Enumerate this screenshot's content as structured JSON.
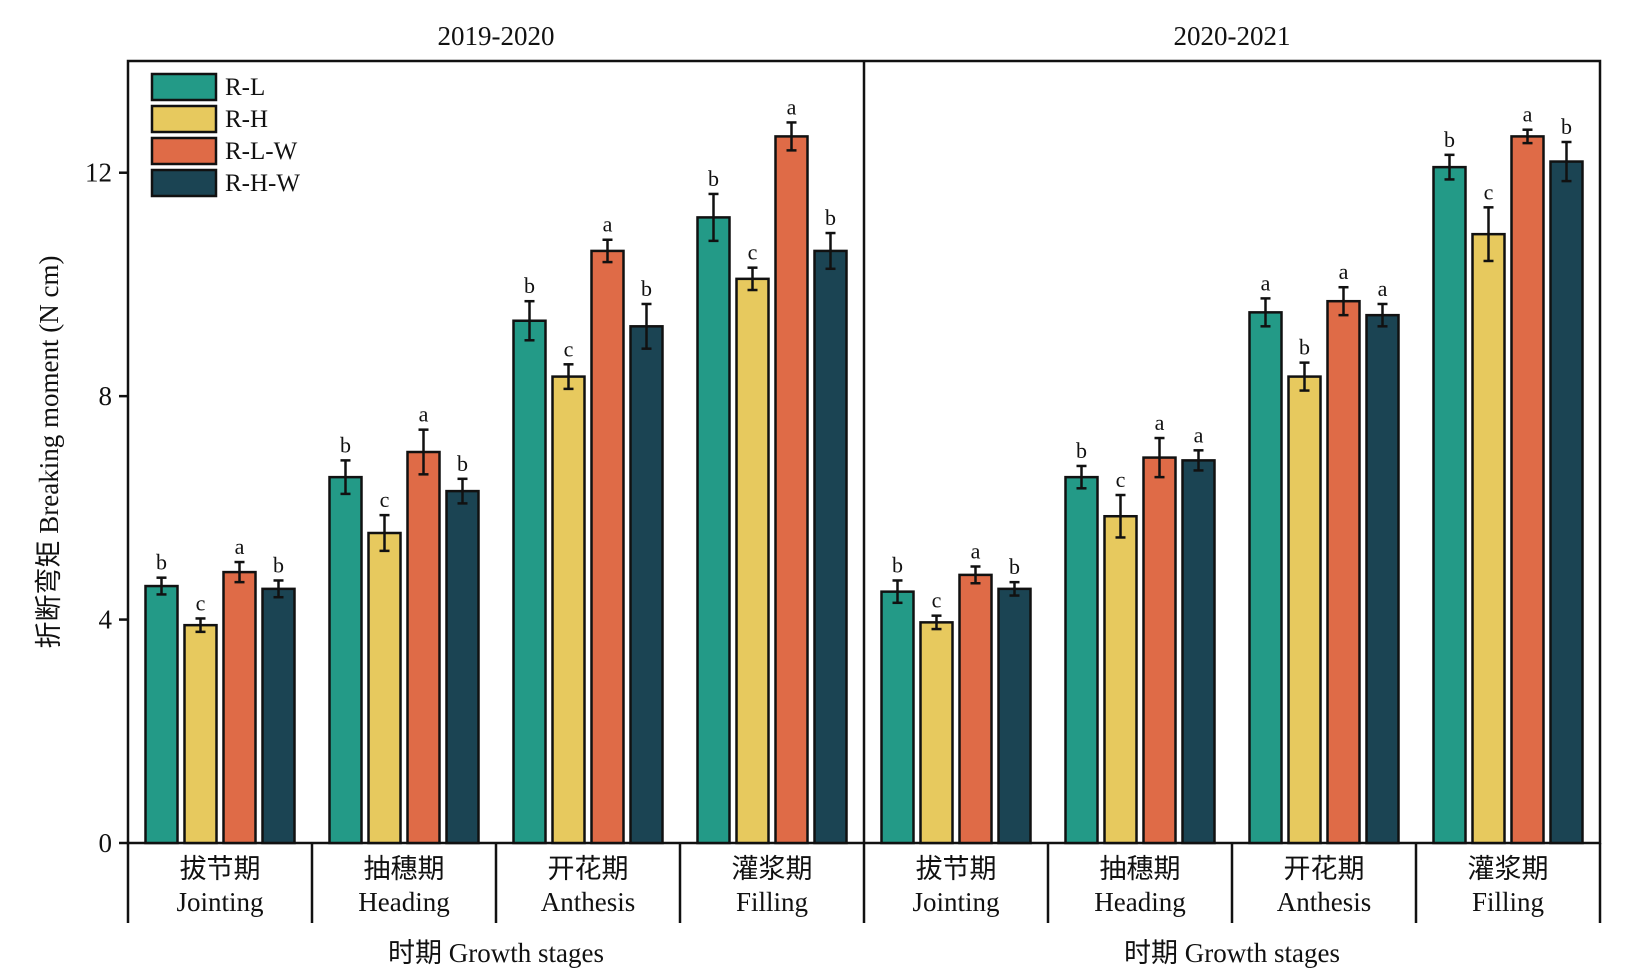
{
  "chart_data": {
    "type": "bar",
    "ylabel": "折断弯矩 Breaking moment (N cm)",
    "ylim": [
      0,
      14
    ],
    "yticks": [
      0,
      4,
      8,
      12
    ],
    "legend": {
      "placement": "top-left",
      "entries": [
        "R-L",
        "R-H",
        "R-L-W",
        "R-H-W"
      ]
    },
    "colors": {
      "R-L": "#239a87",
      "R-H": "#e7c95e",
      "R-L-W": "#df6b47",
      "R-H-W": "#1b4453"
    },
    "series_names": [
      "R-L",
      "R-H",
      "R-L-W",
      "R-H-W"
    ],
    "categories": [
      {
        "zh": "拔节期",
        "en": "Jointing"
      },
      {
        "zh": "抽穗期",
        "en": "Heading"
      },
      {
        "zh": "开花期",
        "en": "Anthesis"
      },
      {
        "zh": "灌浆期",
        "en": "Filling"
      }
    ],
    "panels": [
      {
        "title": "2019-2020",
        "xlabel": "时期 Growth stages",
        "values": [
          [
            4.6,
            3.9,
            4.85,
            4.55
          ],
          [
            6.55,
            5.55,
            7.0,
            6.3
          ],
          [
            9.35,
            8.35,
            10.6,
            9.25
          ],
          [
            11.2,
            10.1,
            12.65,
            10.6
          ]
        ],
        "errors": [
          [
            0.15,
            0.12,
            0.18,
            0.15
          ],
          [
            0.3,
            0.32,
            0.4,
            0.22
          ],
          [
            0.35,
            0.22,
            0.2,
            0.4
          ],
          [
            0.42,
            0.2,
            0.25,
            0.32
          ]
        ],
        "letters": [
          [
            "b",
            "c",
            "a",
            "b"
          ],
          [
            "b",
            "c",
            "a",
            "b"
          ],
          [
            "b",
            "c",
            "a",
            "b"
          ],
          [
            "b",
            "c",
            "a",
            "b"
          ]
        ]
      },
      {
        "title": "2020-2021",
        "xlabel": "时期 Growth stages",
        "values": [
          [
            4.5,
            3.95,
            4.8,
            4.55
          ],
          [
            6.55,
            5.85,
            6.9,
            6.85
          ],
          [
            9.5,
            8.35,
            9.7,
            9.45
          ],
          [
            12.1,
            10.9,
            12.65,
            12.2
          ]
        ],
        "errors": [
          [
            0.2,
            0.12,
            0.15,
            0.12
          ],
          [
            0.2,
            0.38,
            0.35,
            0.18
          ],
          [
            0.25,
            0.25,
            0.25,
            0.2
          ],
          [
            0.22,
            0.48,
            0.12,
            0.35
          ]
        ],
        "letters": [
          [
            "b",
            "c",
            "a",
            "b"
          ],
          [
            "b",
            "c",
            "a",
            "a"
          ],
          [
            "a",
            "b",
            "a",
            "a"
          ],
          [
            "b",
            "c",
            "a",
            "b"
          ]
        ]
      }
    ]
  }
}
